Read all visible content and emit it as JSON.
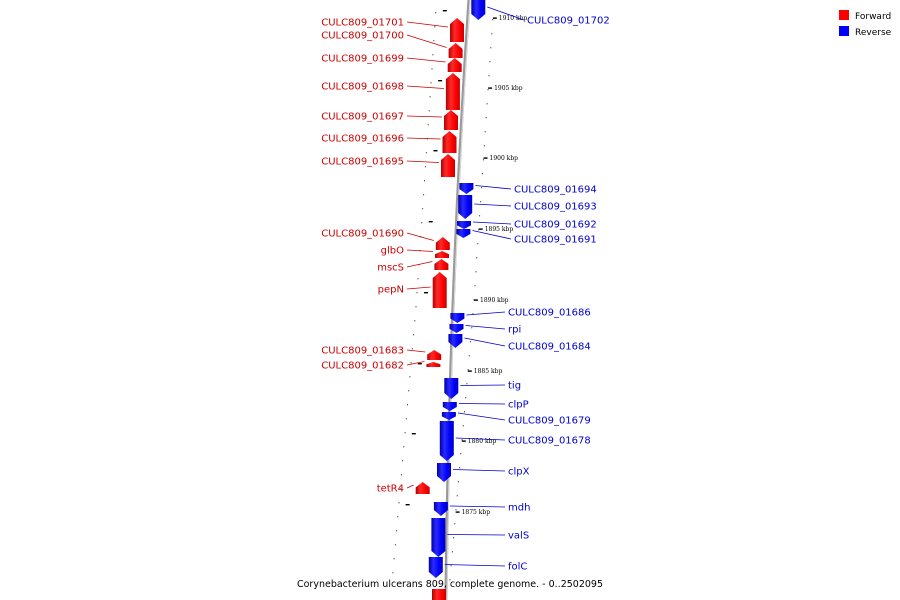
{
  "caption": "Corynebacterium ulcerans 809, complete genome. - 0..2502095",
  "legend": {
    "placement": "top-right",
    "items": [
      {
        "label": "Forward",
        "color": "#ff0000"
      },
      {
        "label": "Reverse",
        "color": "#0000ff"
      }
    ]
  },
  "colors": {
    "forward": "#ff0000",
    "reverse": "#0000ff",
    "backbone": "#999999",
    "forward_label": "#cc0000",
    "reverse_label": "#0000cc"
  },
  "ticks": [
    "1910 kbp",
    "1905 kbp",
    "1900 kbp",
    "1895 kbp",
    "1890 kbp",
    "1885 kbp",
    "1880 kbp",
    "1875 kbp"
  ],
  "forward_genes": [
    "CULC809_01701",
    "CULC809_01700",
    "CULC809_01699",
    "CULC809_01698",
    "CULC809_01697",
    "CULC809_01696",
    "CULC809_01695",
    "CULC809_01690",
    "glbO",
    "mscS",
    "pepN",
    "CULC809_01683",
    "CULC809_01682",
    "tetR4"
  ],
  "reverse_genes": [
    "CULC809_01702",
    "CULC809_01694",
    "CULC809_01693",
    "CULC809_01692",
    "CULC809_01691",
    "CULC809_01686",
    "rpi",
    "CULC809_01684",
    "tig",
    "clpP",
    "CULC809_01679",
    "CULC809_01678",
    "clpX",
    "mdh",
    "valS",
    "folC"
  ]
}
